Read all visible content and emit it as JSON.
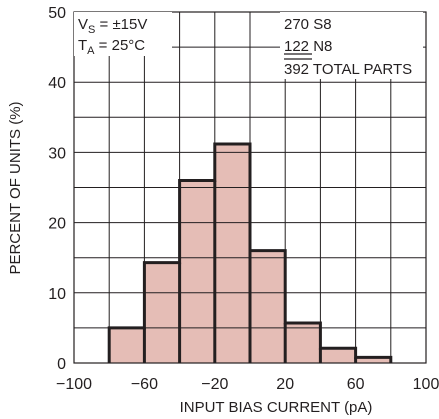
{
  "chart_data": {
    "type": "bar",
    "title": "",
    "xlabel": "INPUT BIAS CURRENT (pA)",
    "ylabel": "PERCENT OF UNITS (%)",
    "xlim": [
      -100,
      100
    ],
    "ylim": [
      0,
      50
    ],
    "x_major_ticks": [
      -100,
      -60,
      -20,
      20,
      60,
      100
    ],
    "x_tick_labels": [
      "−100",
      "−60",
      "−20",
      "20",
      "60",
      "100"
    ],
    "y_major_ticks": [
      0,
      10,
      20,
      30,
      40,
      50
    ],
    "y_tick_labels": [
      "0",
      "10",
      "20",
      "30",
      "40",
      "50"
    ],
    "bin_width": 20,
    "bins": [
      {
        "from": -80,
        "to": -60,
        "value": 5
      },
      {
        "from": -60,
        "to": -40,
        "value": 14.3
      },
      {
        "from": -40,
        "to": -20,
        "value": 26
      },
      {
        "from": -20,
        "to": 0,
        "value": 31.2
      },
      {
        "from": 0,
        "to": 20,
        "value": 16
      },
      {
        "from": 20,
        "to": 40,
        "value": 5.7
      },
      {
        "from": 40,
        "to": 60,
        "value": 2.1
      },
      {
        "from": 60,
        "to": 80,
        "value": 0.8
      }
    ],
    "grid": true,
    "conditions": {
      "vs_main": "V",
      "vs_sub": "S",
      "vs_value": " = ±15V",
      "ta_main": "T",
      "ta_sub": "A",
      "ta_value": " = 25°C"
    },
    "parts": {
      "line1": "270 S8",
      "line2_num": "122",
      "line2_text": " N8",
      "line3_num": "392",
      "line3_text": " TOTAL PARTS"
    },
    "colors": {
      "bar_fill": "#e5bdb6",
      "outline": "#231f20",
      "grid": "#231f20"
    }
  }
}
